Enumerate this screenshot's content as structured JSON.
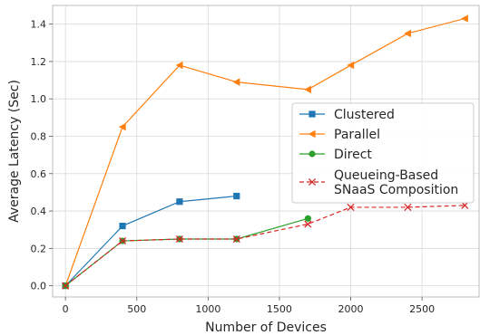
{
  "chart_data": {
    "type": "line",
    "title": "",
    "xlabel": "Number of Devices",
    "ylabel": "Average Latency (Sec)",
    "xlim": [
      -90,
      2900
    ],
    "ylim": [
      -0.06,
      1.5
    ],
    "xticks": [
      0,
      500,
      1000,
      1500,
      2000,
      2500
    ],
    "yticks": [
      0.0,
      0.2,
      0.4,
      0.6,
      0.8,
      1.0,
      1.2,
      1.4
    ],
    "grid": true,
    "legend_position": "center-right",
    "series": [
      {
        "name": "Clustered",
        "color": "#1f77b4",
        "marker": "square",
        "line_style": "solid",
        "x": [
          0,
          400,
          800,
          1200
        ],
        "y": [
          0.0,
          0.32,
          0.45,
          0.48
        ]
      },
      {
        "name": "Parallel",
        "color": "#ff7f0e",
        "marker": "triangle-left",
        "line_style": "solid",
        "x": [
          0,
          400,
          800,
          1200,
          1700,
          2000,
          2400,
          2800
        ],
        "y": [
          0.0,
          0.85,
          1.18,
          1.09,
          1.05,
          1.18,
          1.35,
          1.43
        ]
      },
      {
        "name": "Direct",
        "color": "#2ca02c",
        "marker": "circle",
        "line_style": "solid",
        "x": [
          0,
          400,
          800,
          1200,
          1700
        ],
        "y": [
          0.0,
          0.24,
          0.25,
          0.25,
          0.36
        ]
      },
      {
        "name": "Queueing-Based\nSNaaS Composition",
        "color": "#d62728",
        "marker": "x",
        "line_style": "dashed",
        "x": [
          0,
          400,
          800,
          1200,
          1700,
          2000,
          2400,
          2800
        ],
        "y": [
          0.0,
          0.24,
          0.25,
          0.25,
          0.33,
          0.42,
          0.42,
          0.43
        ]
      }
    ]
  }
}
